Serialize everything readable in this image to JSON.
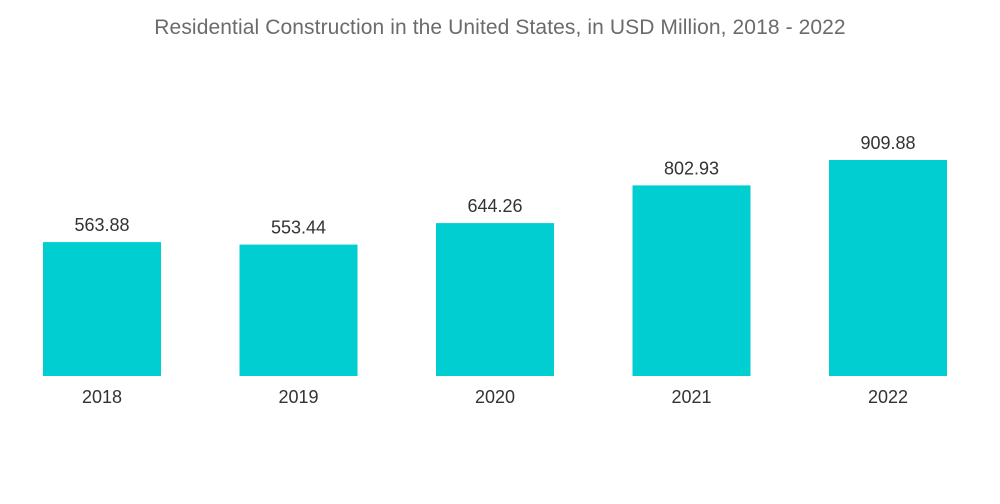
{
  "chart_data": {
    "type": "bar",
    "title": "Residential Construction in the United States, in USD Million, 2018 - 2022",
    "categories": [
      "2018",
      "2019",
      "2020",
      "2021",
      "2022"
    ],
    "values": [
      563.88,
      553.44,
      644.26,
      802.93,
      909.88
    ],
    "value_labels": [
      "563.88",
      "553.44",
      "644.26",
      "802.93",
      "909.88"
    ],
    "xlabel": "",
    "ylabel": "",
    "ylim": [
      0,
      909.88
    ],
    "grid": false,
    "legend": "none",
    "bar_color": "#00ced1"
  }
}
